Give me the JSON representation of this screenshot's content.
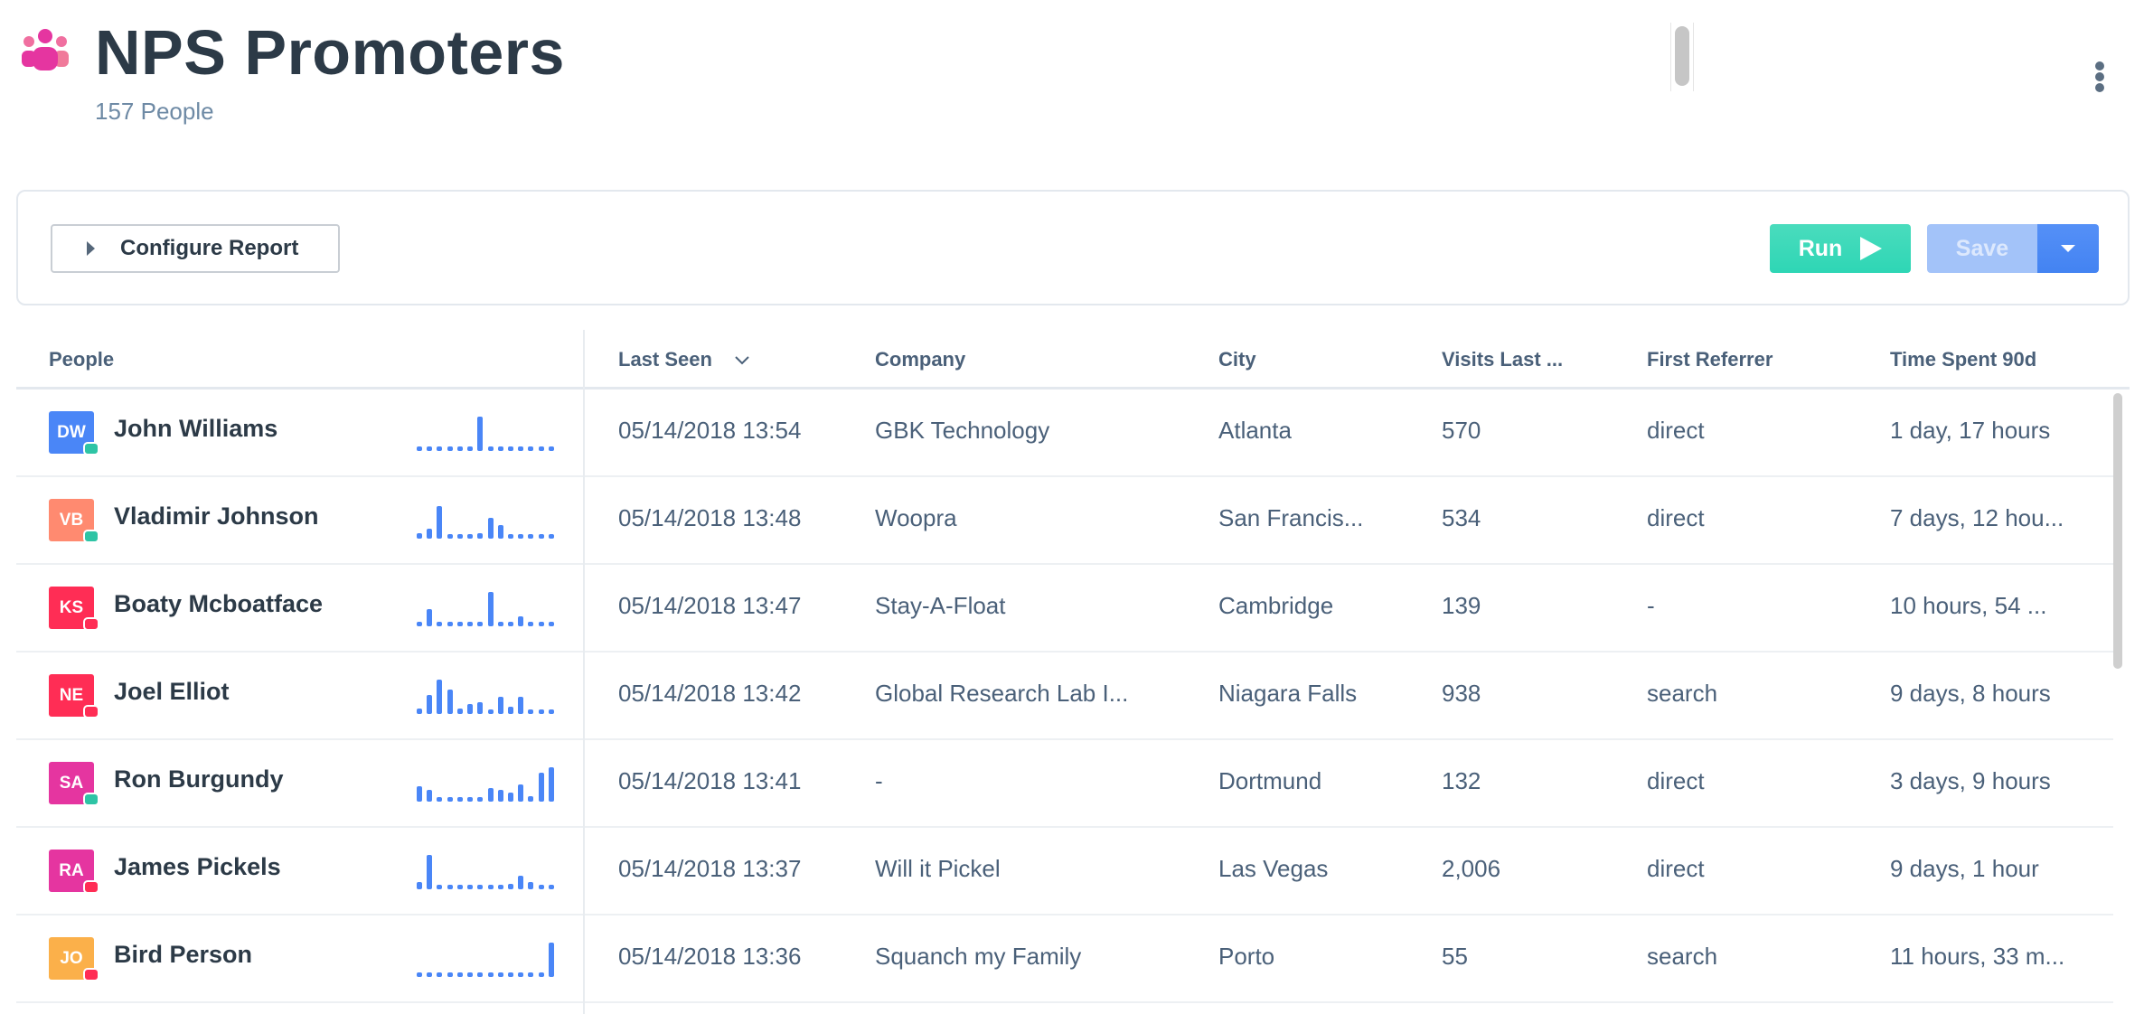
{
  "header": {
    "title": "NPS Promoters",
    "subtitle": "157 People",
    "icon": "people-group-icon",
    "icon_color": "#e535a0"
  },
  "toolbar": {
    "configure_label": "Configure Report",
    "run_label": "Run",
    "save_label": "Save",
    "run_color": "#2ed6b5",
    "save_color": "#4383f2"
  },
  "table": {
    "columns": [
      "People",
      "Last Seen",
      "Company",
      "City",
      "Visits Last ...",
      "First Referrer",
      "Time Spent 90d"
    ],
    "sorted_column": "Last Seen",
    "rows": [
      {
        "initials": "DW",
        "color": "#4a86f7",
        "status": "#2ec4a5",
        "name": "John Williams",
        "spark": [
          0.1,
          0.1,
          0.1,
          0.1,
          0.1,
          0.1,
          1,
          0.1,
          0.1,
          0.1,
          0.1,
          0.1,
          0.1,
          0.1
        ],
        "last_seen": "05/14/2018 13:54",
        "company": "GBK Technology",
        "city": "Atlanta",
        "visits": "570",
        "referrer": "direct",
        "time": "1 day, 17 hours"
      },
      {
        "initials": "VB",
        "color": "#ff8a70",
        "status": "#2ec4a5",
        "name": "Vladimir Johnson",
        "spark": [
          0.15,
          0.3,
          0.95,
          0.1,
          0.1,
          0.1,
          0.15,
          0.6,
          0.4,
          0.1,
          0.1,
          0.1,
          0.1,
          0.1
        ],
        "last_seen": "05/14/2018 13:48",
        "company": "Woopra",
        "city": "San Francis...",
        "visits": "534",
        "referrer": "direct",
        "time": "7 days, 12 hou..."
      },
      {
        "initials": "KS",
        "color": "#ff2d55",
        "status": "#ff2d55",
        "name": "Boaty Mcboatface",
        "spark": [
          0.12,
          0.5,
          0.1,
          0.1,
          0.1,
          0.1,
          0.1,
          1,
          0.1,
          0.1,
          0.3,
          0.1,
          0.1,
          0.1
        ],
        "last_seen": "05/14/2018 13:47",
        "company": "Stay-A-Float",
        "city": "Cambridge",
        "visits": "139",
        "referrer": "-",
        "time": "10 hours, 54 ..."
      },
      {
        "initials": "NE",
        "color": "#ff2d55",
        "status": "#ff2d55",
        "name": "Joel Elliot",
        "spark": [
          0.15,
          0.55,
          1,
          0.7,
          0.15,
          0.3,
          0.35,
          0.1,
          0.5,
          0.2,
          0.5,
          0.1,
          0.1,
          0.1
        ],
        "last_seen": "05/14/2018 13:42",
        "company": "Global Research Lab I...",
        "city": "Niagara Falls",
        "visits": "938",
        "referrer": "search",
        "time": "9 days, 8 hours"
      },
      {
        "initials": "SA",
        "color": "#e535a0",
        "status": "#2ec4a5",
        "name": "Ron Burgundy",
        "spark": [
          0.45,
          0.35,
          0.1,
          0.1,
          0.1,
          0.1,
          0.1,
          0.4,
          0.35,
          0.25,
          0.5,
          0.15,
          0.85,
          1
        ],
        "last_seen": "05/14/2018 13:41",
        "company": "-",
        "city": "Dortmund",
        "visits": "132",
        "referrer": "direct",
        "time": "3 days, 9 hours"
      },
      {
        "initials": "RA",
        "color": "#e535a0",
        "status": "#ff2d55",
        "name": "James Pickels",
        "spark": [
          0.2,
          1,
          0.1,
          0.1,
          0.1,
          0.1,
          0.1,
          0.1,
          0.1,
          0.15,
          0.4,
          0.2,
          0.1,
          0.1
        ],
        "last_seen": "05/14/2018 13:37",
        "company": "Will it Pickel",
        "city": "Las Vegas",
        "visits": "2,006",
        "referrer": "direct",
        "time": "9 days, 1 hour"
      },
      {
        "initials": "JO",
        "color": "#fbb04a",
        "status": "#ff2d55",
        "name": "Bird Person",
        "spark": [
          0.1,
          0.1,
          0.1,
          0.1,
          0.1,
          0.1,
          0.1,
          0.1,
          0.1,
          0.1,
          0.1,
          0.1,
          0.1,
          1
        ],
        "last_seen": "05/14/2018 13:36",
        "company": "Squanch my Family",
        "city": "Porto",
        "visits": "55",
        "referrer": "search",
        "time": "11 hours, 33 m..."
      }
    ]
  }
}
